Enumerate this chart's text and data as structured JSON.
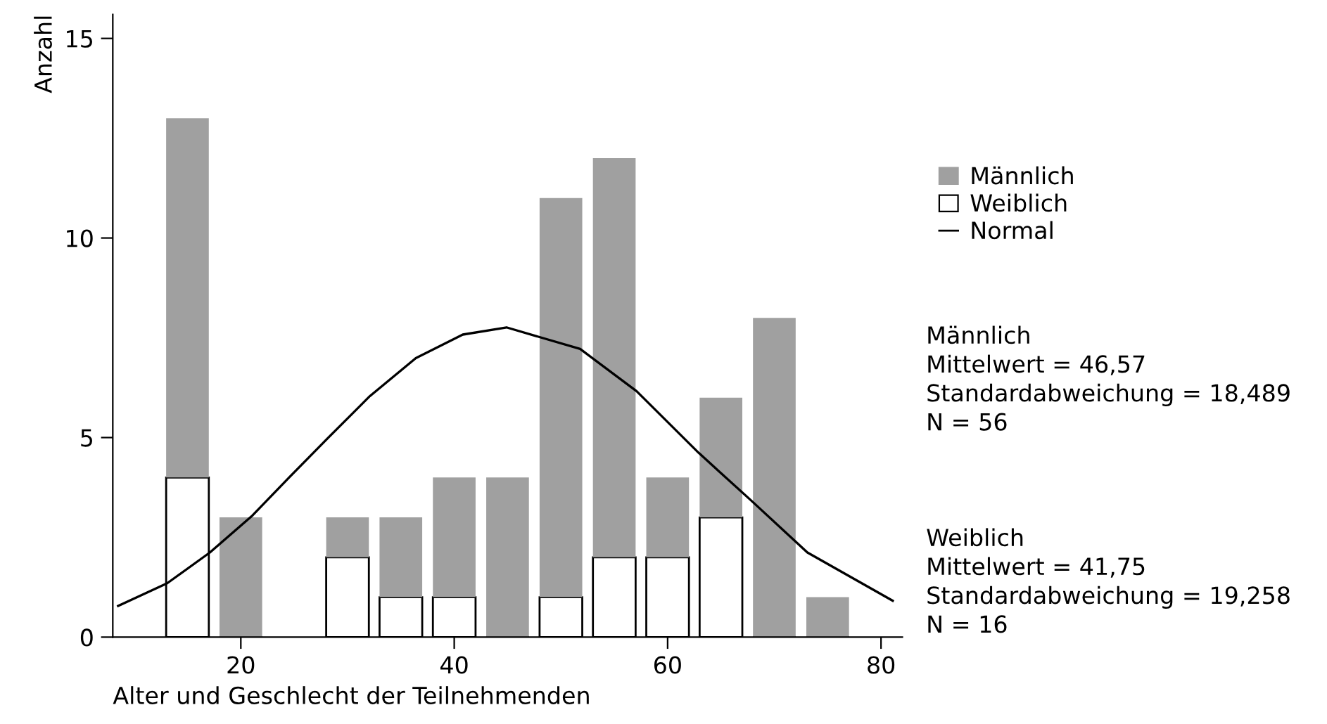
{
  "chart_data": {
    "type": "bar",
    "stacked": true,
    "xlabel": "Alter und Geschlecht der Teilnehmenden",
    "ylabel": "Anzahl",
    "x": [
      15,
      20,
      30,
      35,
      40,
      45,
      50,
      55,
      60,
      65,
      70,
      75
    ],
    "series": [
      {
        "name": "Weiblich",
        "color": "#ffffff",
        "values": [
          4,
          0,
          2,
          1,
          1,
          0,
          1,
          2,
          2,
          3,
          0,
          0
        ]
      },
      {
        "name": "Männlich",
        "color": "#a0a0a0",
        "values": [
          9,
          3,
          1,
          2,
          3,
          4,
          10,
          10,
          2,
          3,
          8,
          1
        ]
      },
      {
        "name": "Normal",
        "type": "line",
        "color": "#000000",
        "line_style": "solid",
        "x": [
          8.5,
          13.1,
          17.1,
          21.1,
          24.6,
          28.1,
          32.1,
          36.4,
          40.8,
          44.9,
          51.8,
          57.1,
          62.9,
          67.8,
          73.1,
          81.1
        ],
        "values": [
          0.78,
          1.35,
          2.12,
          3.05,
          4.02,
          4.97,
          6.04,
          6.99,
          7.58,
          7.76,
          7.22,
          6.16,
          4.62,
          3.43,
          2.12,
          0.91
        ]
      }
    ],
    "xlim": [
      8,
      82
    ],
    "xticks": [
      20,
      40,
      60,
      80
    ],
    "ylim": [
      0,
      15.6
    ],
    "yticks": [
      0,
      5,
      10,
      15
    ],
    "grid": false,
    "legend": "right",
    "annotations": [
      "Männlich\nMittelwert = 46,57\nStandardabweichung = 18,489\nN = 56",
      "Weiblich\nMittelwert = 41,75\nStandardabweichung = 19,258\nN = 16"
    ]
  }
}
